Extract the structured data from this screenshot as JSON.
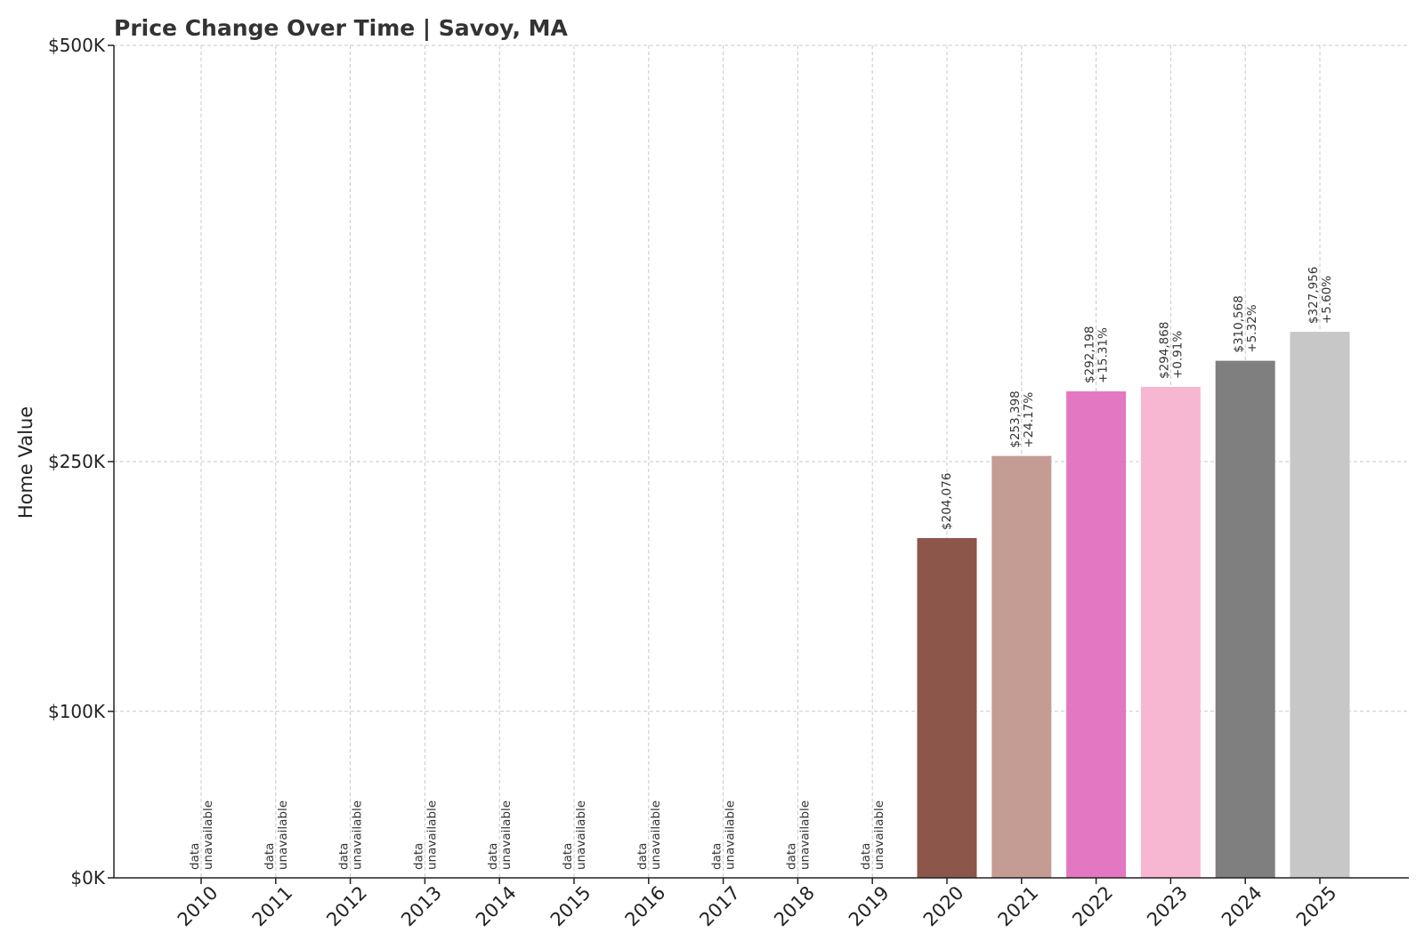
{
  "chart_data": {
    "type": "bar",
    "title": "Price Change Over Time | Savoy, MA",
    "xlabel": "",
    "ylabel": "Home Value",
    "ylim": [
      0,
      500000
    ],
    "yticks": [
      {
        "value": 0,
        "label": "$0K"
      },
      {
        "value": 100000,
        "label": "$100K"
      },
      {
        "value": 250000,
        "label": "$250K"
      },
      {
        "value": 500000,
        "label": "$500K"
      }
    ],
    "grid": true,
    "unavailable_label": [
      "data",
      "unavailable"
    ],
    "categories": [
      "2010",
      "2011",
      "2012",
      "2013",
      "2014",
      "2015",
      "2016",
      "2017",
      "2018",
      "2019",
      "2020",
      "2021",
      "2022",
      "2023",
      "2024",
      "2025"
    ],
    "values": [
      null,
      null,
      null,
      null,
      null,
      null,
      null,
      null,
      null,
      null,
      204076,
      253398,
      292198,
      294868,
      310568,
      327956
    ],
    "value_labels": [
      null,
      null,
      null,
      null,
      null,
      null,
      null,
      null,
      null,
      null,
      "$204,076",
      "$253,398",
      "$292,198",
      "$294,868",
      "$310,568",
      "$327,956"
    ],
    "change_labels": [
      null,
      null,
      null,
      null,
      null,
      null,
      null,
      null,
      null,
      null,
      null,
      "+24.17%",
      "+15.31%",
      "+0.91%",
      "+5.32%",
      "+5.60%"
    ],
    "colors": [
      null,
      null,
      null,
      null,
      null,
      null,
      null,
      null,
      null,
      null,
      "#8c564b",
      "#c49c94",
      "#e377c2",
      "#f7b6d2",
      "#7f7f7f",
      "#c7c7c7"
    ]
  }
}
